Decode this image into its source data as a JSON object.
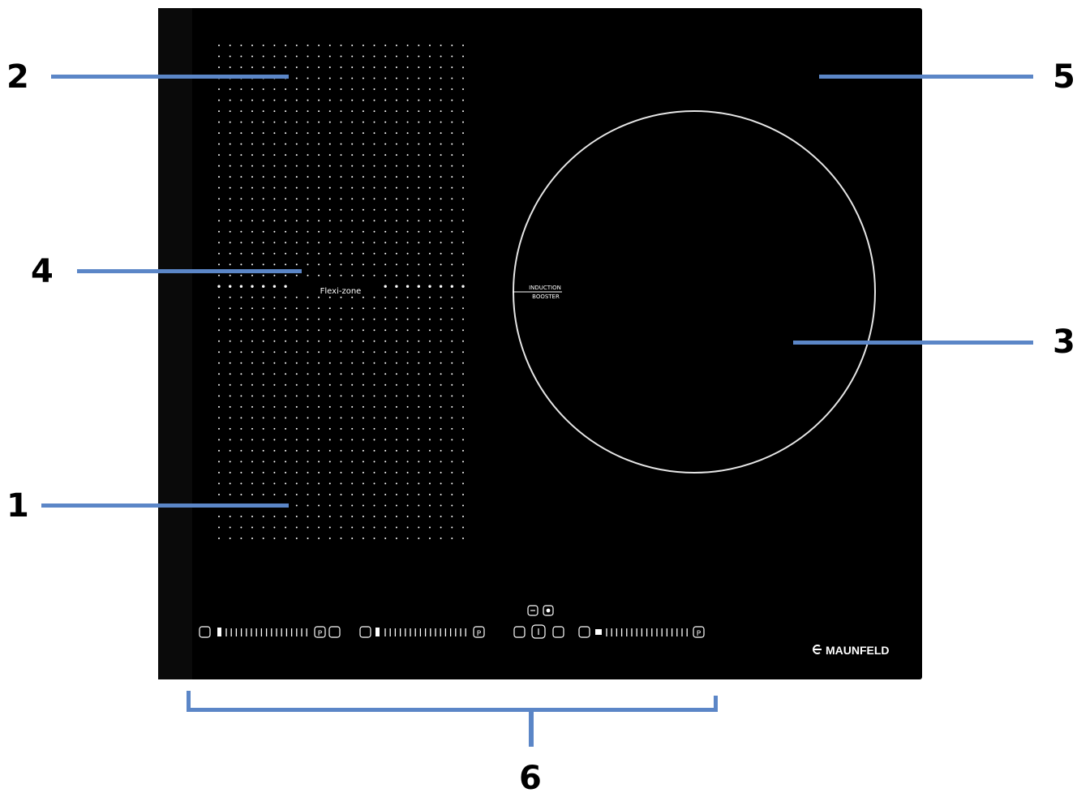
{
  "callouts": [
    {
      "number": "1"
    },
    {
      "number": "2"
    },
    {
      "number": "3"
    },
    {
      "number": "4"
    },
    {
      "number": "5"
    },
    {
      "number": "6"
    }
  ],
  "hob": {
    "flexi_zone_label": "Flexi-zone",
    "booster_label_line1": "INDUCTION",
    "booster_label_line2": "BOOSTER",
    "brand": "MAUNFELD",
    "surface_color": "#000000",
    "marking_color": "#ffffff",
    "callout_color": "#5b86c7",
    "controls": {
      "left_zone_slider_icons": [
        "zone-icon",
        "timer-icon",
        "pause-icon",
        "boost-icon"
      ],
      "middle_zone_slider_icons": [
        "zone-icon",
        "timer-icon",
        "pause-icon"
      ],
      "central_controls_icons": [
        "minus-icon",
        "plus-icon",
        "lock-icon",
        "power-icon",
        "timer-icon"
      ],
      "right_zone_slider_icons": [
        "zone-icon",
        "timer-icon",
        "pause-icon"
      ]
    }
  }
}
